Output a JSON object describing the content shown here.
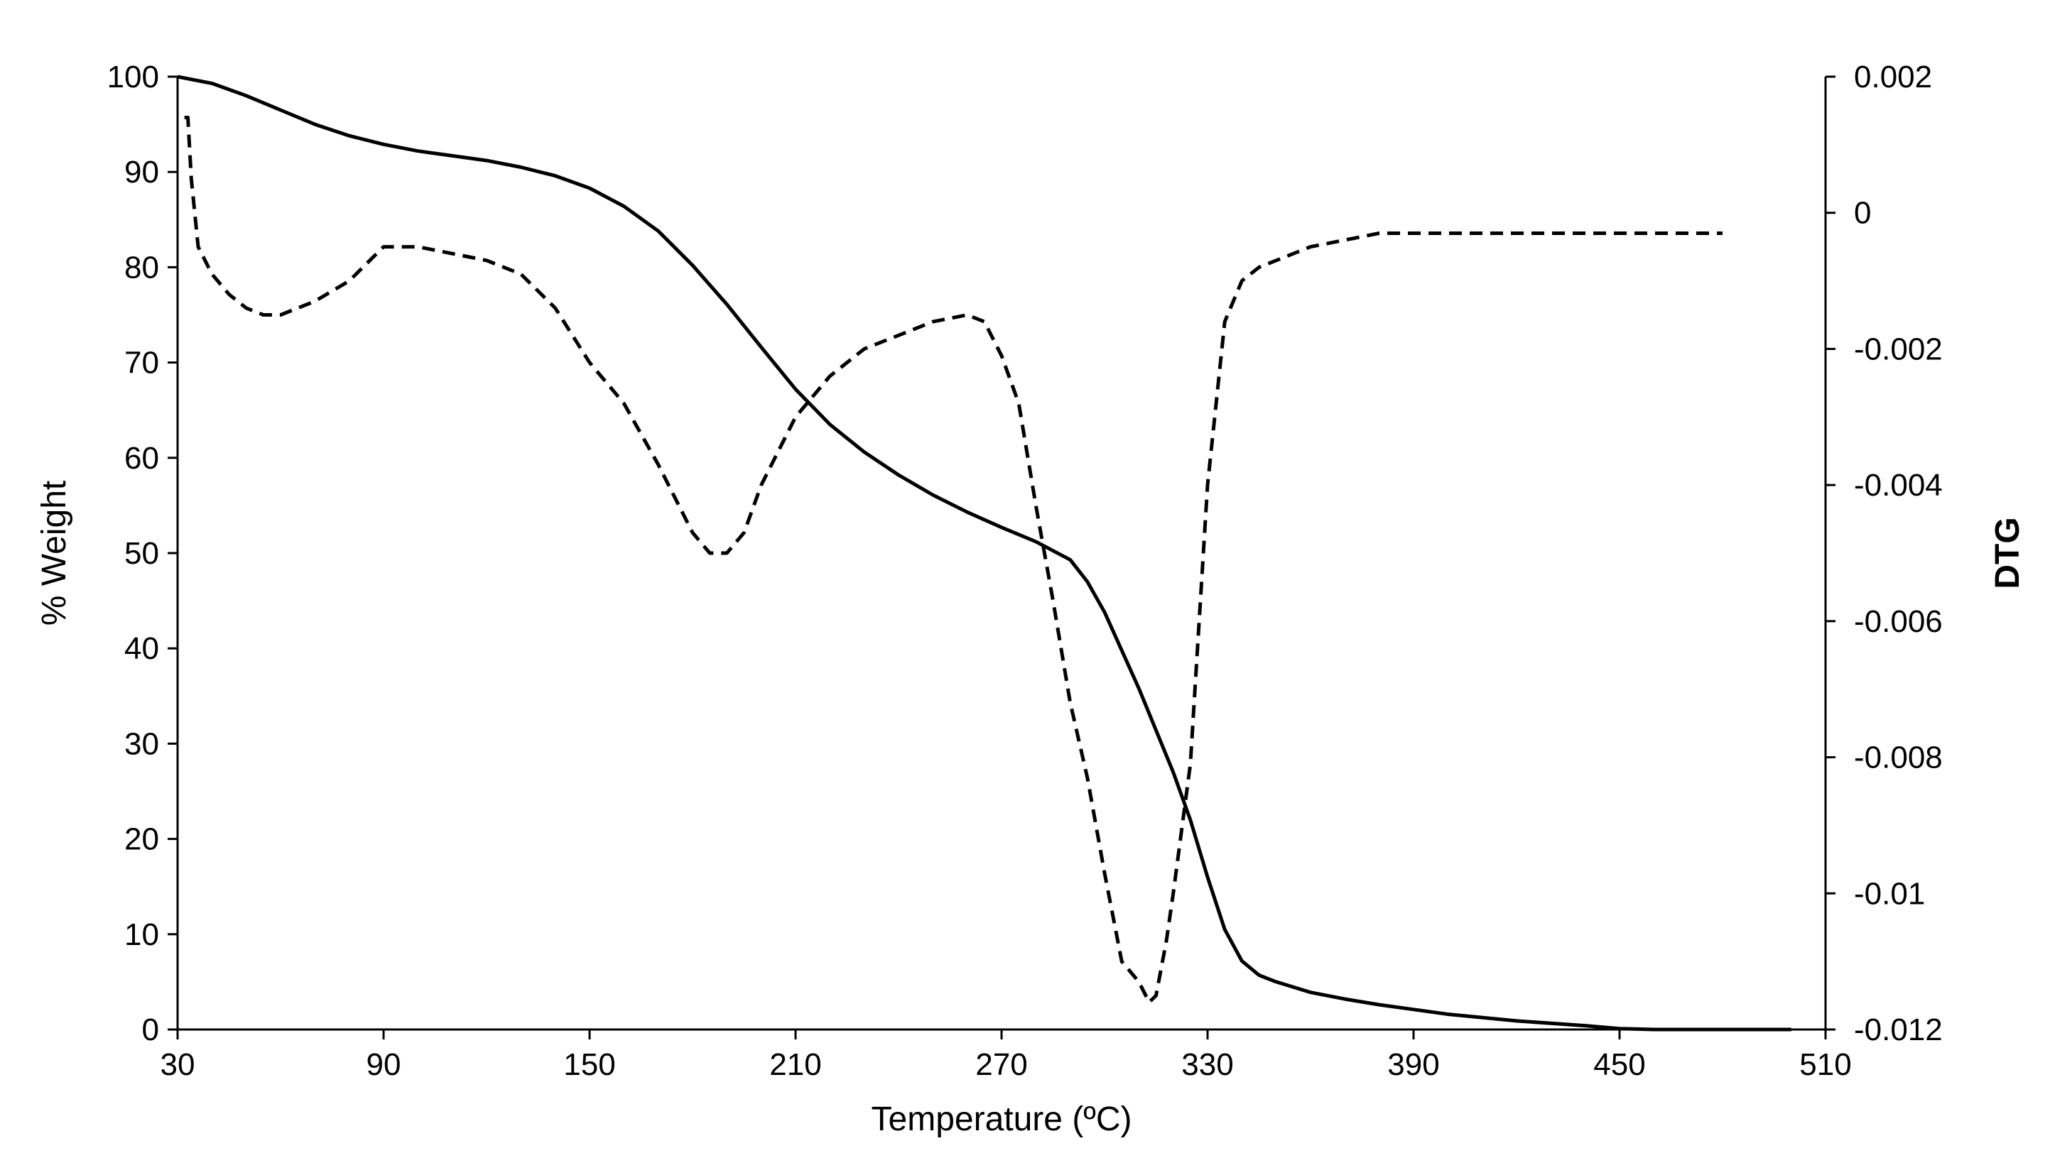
{
  "chart_data": {
    "type": "line",
    "xlabel": "Temperature (ºC)",
    "ylabel": "% Weight",
    "y2label": "DTG",
    "xlim": [
      30,
      510
    ],
    "ylim": [
      0,
      100
    ],
    "y2lim": [
      -0.012,
      0.002
    ],
    "x_ticks": [
      "30",
      "90",
      "150",
      "210",
      "270",
      "330",
      "390",
      "450",
      "510"
    ],
    "y_ticks": [
      "0",
      "10",
      "20",
      "30",
      "40",
      "50",
      "60",
      "70",
      "80",
      "90",
      "100"
    ],
    "y2_ticks": [
      "-0.012",
      "-0.01",
      "-0.008",
      "-0.006",
      "-0.004",
      "-0.002",
      "0",
      "0.002"
    ],
    "grid": false,
    "line_color": "#000000",
    "series": [
      {
        "axis": "left",
        "style": "solid",
        "x": [
          30,
          40,
          50,
          60,
          70,
          80,
          90,
          100,
          110,
          120,
          130,
          140,
          150,
          160,
          170,
          180,
          190,
          200,
          210,
          220,
          230,
          240,
          250,
          260,
          270,
          280,
          290,
          295,
          300,
          310,
          320,
          325,
          330,
          335,
          340,
          345,
          350,
          360,
          370,
          380,
          390,
          400,
          420,
          440,
          450,
          460,
          480,
          500
        ],
        "y": [
          100,
          99.3,
          98,
          96.5,
          95,
          93.8,
          92.9,
          92.2,
          91.7,
          91.2,
          90.5,
          89.6,
          88.3,
          86.4,
          83.8,
          80.2,
          76.1,
          71.6,
          67.2,
          63.5,
          60.6,
          58.2,
          56.1,
          54.3,
          52.7,
          51.2,
          49.3,
          47,
          43.8,
          35.8,
          27,
          22,
          16,
          10.5,
          7.2,
          5.7,
          5,
          3.9,
          3.2,
          2.6,
          2.1,
          1.6,
          0.9,
          0.4,
          0.1,
          0,
          0,
          0
        ]
      },
      {
        "axis": "right",
        "style": "dashed",
        "x": [
          32,
          33,
          34,
          36,
          40,
          45,
          50,
          55,
          60,
          70,
          80,
          90,
          100,
          110,
          120,
          130,
          140,
          150,
          160,
          170,
          180,
          185,
          190,
          195,
          200,
          210,
          220,
          230,
          240,
          250,
          260,
          265,
          270,
          275,
          280,
          285,
          290,
          295,
          300,
          305,
          310,
          313,
          315,
          318,
          320,
          325,
          330,
          335,
          340,
          345,
          350,
          360,
          370,
          380,
          390,
          400,
          420,
          440,
          460,
          480
        ],
        "y": [
          0.0014,
          0.0014,
          0.0005,
          -0.0005,
          -0.0009,
          -0.0012,
          -0.0014,
          -0.0015,
          -0.0015,
          -0.0013,
          -0.001,
          -0.0005,
          -0.0005,
          -0.0006,
          -0.0007,
          -0.0009,
          -0.0014,
          -0.0022,
          -0.0028,
          -0.0037,
          -0.0047,
          -0.005,
          -0.005,
          -0.0047,
          -0.004,
          -0.003,
          -0.0024,
          -0.002,
          -0.0018,
          -0.0016,
          -0.0015,
          -0.0016,
          -0.0021,
          -0.0028,
          -0.0043,
          -0.0057,
          -0.0072,
          -0.0083,
          -0.0097,
          -0.011,
          -0.0113,
          -0.0116,
          -0.0115,
          -0.0107,
          -0.01,
          -0.0081,
          -0.004,
          -0.0016,
          -0.001,
          -0.0008,
          -0.0007,
          -0.0005,
          -0.0004,
          -0.0003,
          -0.0003,
          -0.0003,
          -0.0003,
          -0.0003,
          -0.0003,
          -0.0003
        ]
      }
    ]
  }
}
